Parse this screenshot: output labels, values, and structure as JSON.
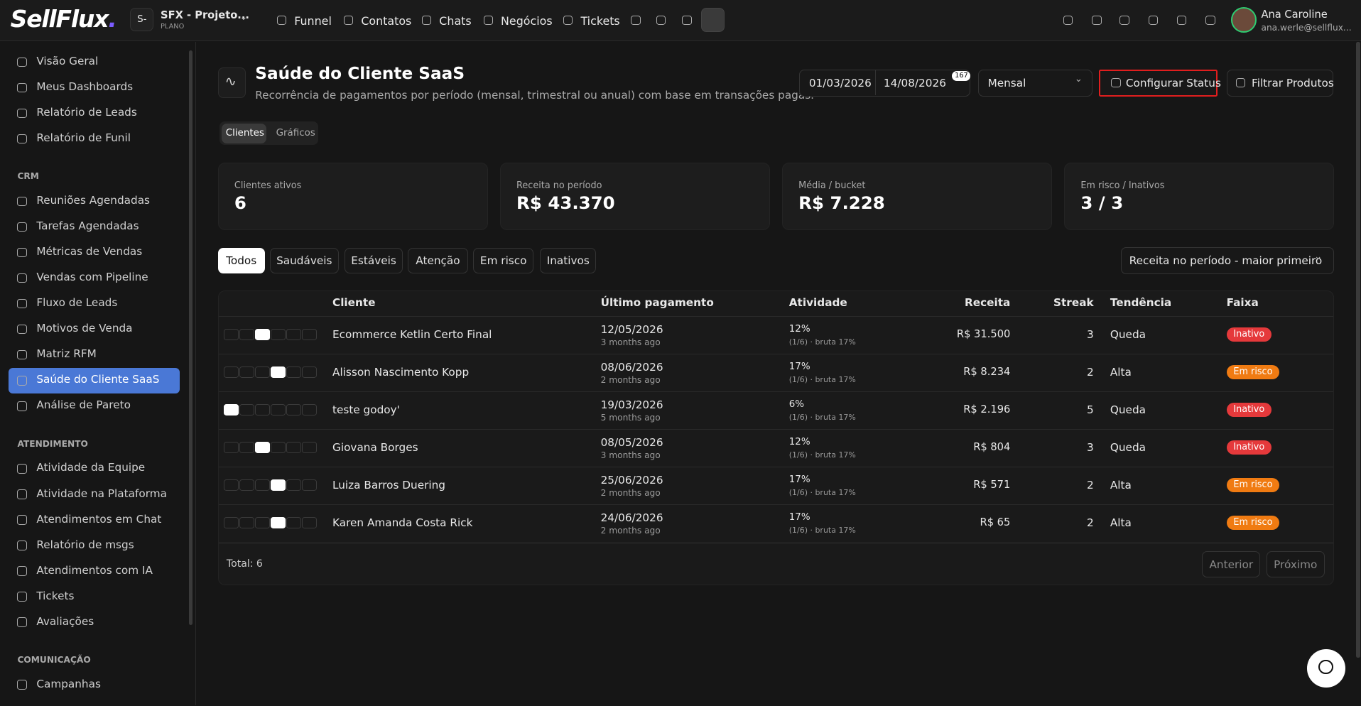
{
  "header": {
    "logo": "SellFlux",
    "logo_dot": ".",
    "project_initial": "S-",
    "project_name": "SFX - Projeto...",
    "project_plan": "PLANO",
    "nav": [
      "Funnel",
      "Contatos",
      "Chats",
      "Negócios",
      "Tickets"
    ],
    "user_name": "Ana Caroline",
    "user_email": "ana.werle@sellflux..."
  },
  "sidebar": {
    "items": [
      "Visão Geral",
      "Meus Dashboards",
      "Relatório de Leads",
      "Relatório de Funil"
    ],
    "sections": [
      {
        "title": "CRM",
        "items": [
          "Reuniões Agendadas",
          "Tarefas Agendadas",
          "Métricas de Vendas",
          "Vendas com Pipeline",
          "Fluxo de Leads",
          "Motivos de Venda",
          "Matriz RFM",
          "Saúde do Cliente SaaS",
          "Análise de Pareto"
        ]
      },
      {
        "title": "ATENDIMENTO",
        "items": [
          "Atividade da Equipe",
          "Atividade na Plataforma",
          "Atendimentos em Chat",
          "Relatório de msgs",
          "Atendimentos com IA",
          "Tickets",
          "Avaliações"
        ]
      },
      {
        "title": "COMUNICAÇÃO",
        "items": [
          "Campanhas"
        ]
      }
    ]
  },
  "page": {
    "title": "Saúde do Cliente SaaS",
    "subtitle": "Recorrência de pagamentos por período (mensal, trimestral ou anual) com base em transações pagas.",
    "date_start": "01/03/2026",
    "date_end": "14/08/2026",
    "date_badge": "167",
    "period": "Mensal",
    "configure_button": "Configurar Status",
    "filter_button": "Filtrar Produtos",
    "tabs": [
      "Clientes",
      "Gráficos"
    ]
  },
  "stats": [
    {
      "label": "Clientes ativos",
      "value": "6"
    },
    {
      "label": "Receita no período",
      "value": "R$ 43.370"
    },
    {
      "label": "Média / bucket",
      "value": "R$ 7.228"
    },
    {
      "label": "Em risco / Inativos",
      "value": "3 / 3"
    }
  ],
  "filters": [
    "Todos",
    "Saudáveis",
    "Estáveis",
    "Atenção",
    "Em risco",
    "Inativos"
  ],
  "sort": "Receita no período - maior primeiro",
  "table": {
    "columns": [
      "Cliente",
      "Último pagamento",
      "Atividade",
      "Receita",
      "Streak",
      "Tendência",
      "Faixa"
    ],
    "rows": [
      {
        "client": "Ecommerce Ketlin Certo Final",
        "last_payment": "12/05/2026",
        "ago": "3 months ago",
        "activity": "12%",
        "activity_detail": "(1/6) · bruta 17%",
        "revenue": "R$ 31.500",
        "streak": "3",
        "trend": "Queda",
        "band": "Inativo",
        "band_color": "#e5393b"
      },
      {
        "client": "Alisson Nascimento Kopp",
        "last_payment": "08/06/2026",
        "ago": "2 months ago",
        "activity": "17%",
        "activity_detail": "(1/6) · bruta 17%",
        "revenue": "R$ 8.234",
        "streak": "2",
        "trend": "Alta",
        "band": "Em risco",
        "band_color": "#f07b12"
      },
      {
        "client": "teste godoy'",
        "last_payment": "19/03/2026",
        "ago": "5 months ago",
        "activity": "6%",
        "activity_detail": "(1/6) · bruta 17%",
        "revenue": "R$ 2.196",
        "streak": "5",
        "trend": "Queda",
        "band": "Inativo",
        "band_color": "#e5393b"
      },
      {
        "client": "Giovana Borges",
        "last_payment": "08/05/2026",
        "ago": "3 months ago",
        "activity": "12%",
        "activity_detail": "(1/6) · bruta 17%",
        "revenue": "R$ 804",
        "streak": "3",
        "trend": "Queda",
        "band": "Inativo",
        "band_color": "#e5393b"
      },
      {
        "client": "Luiza Barros Duering",
        "last_payment": "25/06/2026",
        "ago": "2 months ago",
        "activity": "17%",
        "activity_detail": "(1/6) · bruta 17%",
        "revenue": "R$ 571",
        "streak": "2",
        "trend": "Alta",
        "band": "Em risco",
        "band_color": "#f07b12"
      },
      {
        "client": "Karen Amanda Costa Rick",
        "last_payment": "24/06/2026",
        "ago": "2 months ago",
        "activity": "17%",
        "activity_detail": "(1/6) · bruta 17%",
        "revenue": "R$ 65",
        "streak": "2",
        "trend": "Alta",
        "band": "Em risco",
        "band_color": "#f07b12"
      }
    ],
    "total": "Total: 6",
    "prev": "Anterior",
    "next": "Próximo"
  }
}
